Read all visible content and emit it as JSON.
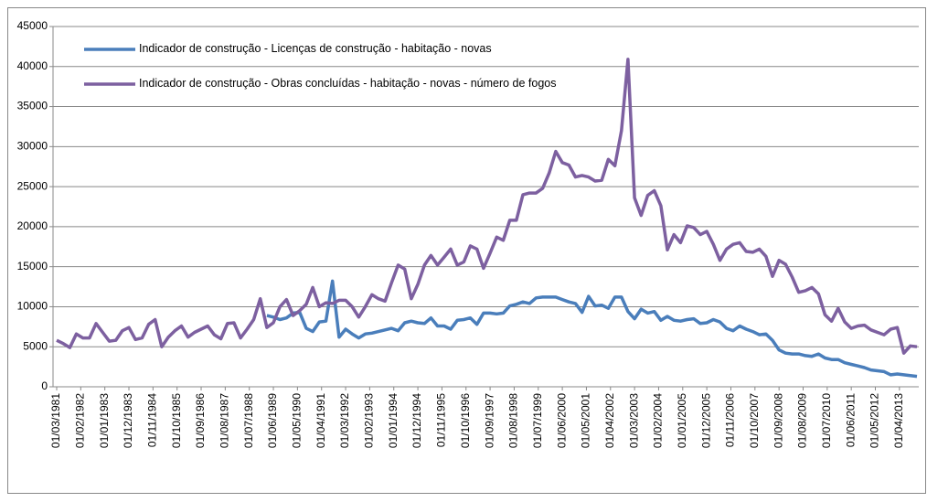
{
  "chart_data": {
    "type": "line",
    "x": [
      "01/03/1981",
      "01/06/1981",
      "01/09/1981",
      "01/12/1981",
      "01/03/1982",
      "01/06/1982",
      "01/09/1982",
      "01/12/1982",
      "01/03/1983",
      "01/06/1983",
      "01/09/1983",
      "01/12/1983",
      "01/03/1984",
      "01/06/1984",
      "01/09/1984",
      "01/12/1984",
      "01/03/1985",
      "01/06/1985",
      "01/09/1985",
      "01/12/1985",
      "01/03/1986",
      "01/06/1986",
      "01/09/1986",
      "01/12/1986",
      "01/03/1987",
      "01/06/1987",
      "01/09/1987",
      "01/12/1987",
      "01/03/1988",
      "01/06/1988",
      "01/09/1988",
      "01/12/1988",
      "01/03/1989",
      "01/06/1989",
      "01/09/1989",
      "01/12/1989",
      "01/03/1990",
      "01/06/1990",
      "01/09/1990",
      "01/12/1990",
      "01/03/1991",
      "01/06/1991",
      "01/09/1991",
      "01/12/1991",
      "01/03/1992",
      "01/06/1992",
      "01/09/1992",
      "01/12/1992",
      "01/03/1993",
      "01/06/1993",
      "01/09/1993",
      "01/12/1993",
      "01/03/1994",
      "01/06/1994",
      "01/09/1994",
      "01/12/1994",
      "01/03/1995",
      "01/06/1995",
      "01/09/1995",
      "01/12/1995",
      "01/03/1996",
      "01/06/1996",
      "01/09/1996",
      "01/12/1996",
      "01/03/1997",
      "01/06/1997",
      "01/09/1997",
      "01/12/1997",
      "01/03/1998",
      "01/06/1998",
      "01/09/1998",
      "01/12/1998",
      "01/03/1999",
      "01/06/1999",
      "01/09/1999",
      "01/12/1999",
      "01/03/2000",
      "01/06/2000",
      "01/09/2000",
      "01/12/2000",
      "01/03/2001",
      "01/06/2001",
      "01/09/2001",
      "01/12/2001",
      "01/03/2002",
      "01/06/2002",
      "01/09/2002",
      "01/12/2002",
      "01/03/2003",
      "01/06/2003",
      "01/09/2003",
      "01/12/2003",
      "01/03/2004",
      "01/06/2004",
      "01/09/2004",
      "01/12/2004",
      "01/03/2005",
      "01/06/2005",
      "01/09/2005",
      "01/12/2005",
      "01/03/2006",
      "01/06/2006",
      "01/09/2006",
      "01/12/2006",
      "01/03/2007",
      "01/06/2007",
      "01/09/2007",
      "01/12/2007",
      "01/03/2008",
      "01/06/2008",
      "01/09/2008",
      "01/12/2008",
      "01/03/2009",
      "01/06/2009",
      "01/09/2009",
      "01/12/2009",
      "01/03/2010",
      "01/06/2010",
      "01/09/2010",
      "01/12/2010",
      "01/03/2011",
      "01/06/2011",
      "01/09/2011",
      "01/12/2011",
      "01/03/2012",
      "01/06/2012",
      "01/09/2012",
      "01/12/2012",
      "01/03/2013",
      "01/06/2013",
      "01/09/2013",
      "01/12/2013"
    ],
    "series": [
      {
        "name": "Indicador de construção - Licenças de construção - habitação - novas",
        "color": "#4a7ebb",
        "values": [
          null,
          null,
          null,
          null,
          null,
          null,
          null,
          null,
          null,
          null,
          null,
          null,
          null,
          null,
          null,
          null,
          null,
          null,
          null,
          null,
          null,
          null,
          null,
          null,
          null,
          null,
          null,
          null,
          null,
          null,
          null,
          null,
          8900,
          8700,
          8400,
          8600,
          9200,
          9300,
          7300,
          6900,
          8100,
          8200,
          13200,
          6200,
          7200,
          6600,
          6100,
          6600,
          6700,
          6900,
          7100,
          7300,
          7000,
          8000,
          8200,
          8000,
          7900,
          8600,
          7600,
          7600,
          7200,
          8300,
          8400,
          8600,
          7800,
          9200,
          9200,
          9100,
          9200,
          10100,
          10300,
          10600,
          10400,
          11100,
          11200,
          11200,
          11200,
          10900,
          10600,
          10400,
          9300,
          11300,
          10100,
          10200,
          9800,
          11200,
          11200,
          9400,
          8500,
          9700,
          9200,
          9400,
          8300,
          8800,
          8300,
          8200,
          8400,
          8500,
          7900,
          8000,
          8400,
          8100,
          7300,
          7000,
          7600,
          7200,
          6900,
          6500,
          6600,
          5800,
          4600,
          4200,
          4100,
          4100,
          3900,
          3800,
          4100,
          3600,
          3400,
          3400,
          3000,
          2800,
          2600,
          2400,
          2100,
          2000,
          1900,
          1500,
          1600,
          1500,
          1400,
          1300
        ]
      },
      {
        "name": "Indicador de construção - Obras concluídas - habitação - novas - número de fogos",
        "color": "#7d60a0",
        "values": [
          5800,
          5400,
          4900,
          6600,
          6100,
          6100,
          7900,
          6800,
          5700,
          5800,
          7000,
          7400,
          5900,
          6100,
          7800,
          8400,
          5000,
          6200,
          7000,
          7600,
          6200,
          6800,
          7200,
          7600,
          6500,
          6000,
          7900,
          8000,
          6100,
          7200,
          8400,
          11000,
          7400,
          8000,
          10000,
          10900,
          8900,
          9500,
          10300,
          12400,
          10000,
          10500,
          10400,
          10800,
          10800,
          10000,
          8700,
          10000,
          11500,
          11000,
          10700,
          13000,
          15200,
          14700,
          11000,
          12800,
          15200,
          16400,
          15200,
          16200,
          17200,
          15200,
          15600,
          17600,
          17200,
          14800,
          16700,
          18700,
          18300,
          20800,
          20800,
          24000,
          24200,
          24200,
          24800,
          26700,
          29400,
          28000,
          27700,
          26200,
          26400,
          26200,
          25700,
          25800,
          28400,
          27600,
          32000,
          40900,
          23600,
          21400,
          23900,
          24500,
          22600,
          17100,
          19000,
          18000,
          20100,
          19900,
          19000,
          19400,
          17800,
          15800,
          17200,
          17800,
          18000,
          16900,
          16800,
          17200,
          16300,
          13800,
          15800,
          15300,
          13700,
          11800,
          12000,
          12400,
          11600,
          9000,
          8200,
          9800,
          8100,
          7300,
          7600,
          7700,
          7100,
          6800,
          6500,
          7200,
          7400,
          4200,
          5100,
          5000
        ]
      }
    ],
    "xlim": [
      "01/03/1981",
      "01/12/2013"
    ],
    "xticks": [
      "01/03/1981",
      "01/02/1982",
      "01/01/1983",
      "01/12/1983",
      "01/11/1984",
      "01/10/1985",
      "01/09/1986",
      "01/08/1987",
      "01/07/1988",
      "01/06/1989",
      "01/05/1990",
      "01/04/1991",
      "01/03/1992",
      "01/02/1993",
      "01/01/1994",
      "01/12/1994",
      "01/11/1995",
      "01/10/1996",
      "01/09/1997",
      "01/08/1998",
      "01/07/1999",
      "01/06/2000",
      "01/05/2001",
      "01/04/2002",
      "01/03/2003",
      "01/02/2004",
      "01/01/2005",
      "01/12/2005",
      "01/11/2006",
      "01/10/2007",
      "01/09/2008",
      "01/08/2009",
      "01/07/2010",
      "01/06/2011",
      "01/05/2012",
      "01/04/2013"
    ],
    "ylim": [
      0,
      45000
    ],
    "yticks": [
      0,
      5000,
      10000,
      15000,
      20000,
      25000,
      30000,
      35000,
      40000,
      45000
    ],
    "grid": true,
    "legend": "top-left"
  }
}
